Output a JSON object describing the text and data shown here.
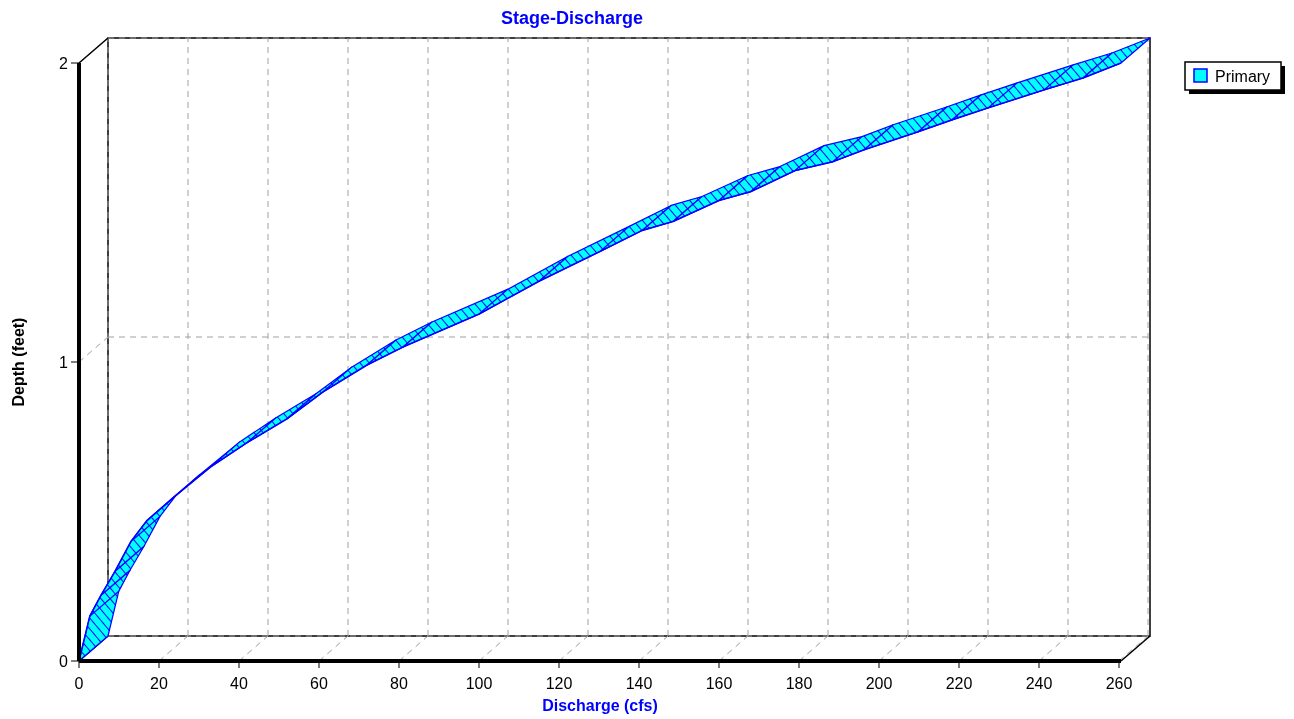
{
  "chart_data": {
    "type": "line",
    "title": "Stage-Discharge",
    "xlabel": "Discharge  (cfs)",
    "ylabel": "Depth  (feet)",
    "x": [
      0,
      2.7,
      5.5,
      9,
      13,
      17,
      23,
      33,
      42,
      52,
      61,
      72,
      81,
      100,
      115,
      130.3,
      140.8,
      148.5,
      160,
      168,
      179,
      188.5,
      196.3,
      209.8,
      218.3,
      227.3,
      241.3,
      251,
      260.5
    ],
    "series": [
      {
        "name": "Primary",
        "color": "#0000ff",
        "values": [
          0,
          0.15,
          0.22,
          0.3,
          0.4,
          0.47,
          0.54,
          0.65,
          0.73,
          0.81,
          0.9,
          0.99,
          1.05,
          1.16,
          1.27,
          1.37,
          1.44,
          1.47,
          1.54,
          1.57,
          1.64,
          1.67,
          1.71,
          1.77,
          1.81,
          1.85,
          1.91,
          1.95,
          2.0
        ]
      }
    ],
    "xlim": [
      0,
      260.5
    ],
    "ylim": [
      0,
      2
    ],
    "xticks": [
      0,
      20,
      40,
      60,
      80,
      100,
      120,
      140,
      160,
      180,
      200,
      220,
      240,
      260
    ],
    "yticks": [
      0,
      1,
      2
    ],
    "grid": true,
    "legend": "top right"
  }
}
